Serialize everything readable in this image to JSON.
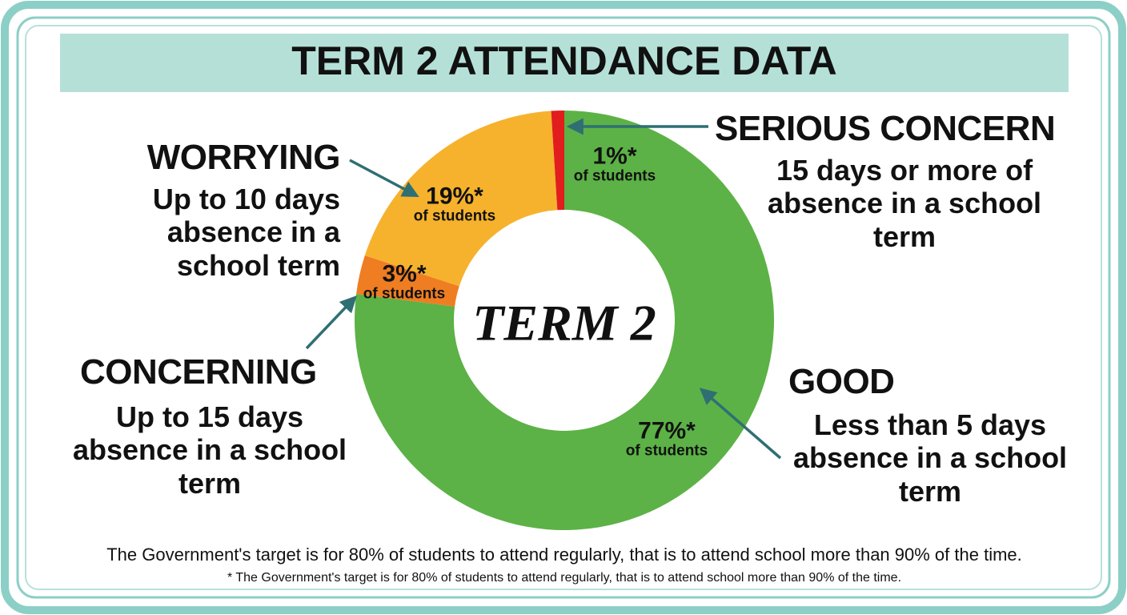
{
  "chart_data": {
    "type": "pie",
    "donut": true,
    "title": "TERM 2 ATTENDANCE DATA",
    "center_label": "TERM 2",
    "categories": [
      "GOOD",
      "CONCERNING",
      "WORRYING",
      "SERIOUS CONCERN"
    ],
    "descriptions": [
      [
        "Less than 5 days",
        "absence in a school",
        "term"
      ],
      [
        "Up to 15 days",
        "absence in a school",
        "term"
      ],
      [
        "Up to 10 days",
        "absence in a",
        "school term"
      ],
      [
        "15 days or more of",
        "absence in a school",
        "term"
      ]
    ],
    "values": [
      77,
      3,
      19,
      1
    ],
    "value_labels": [
      "77%*",
      "3%*",
      "19%*",
      "1%*"
    ],
    "value_sublabel": "of students",
    "colors": [
      "#5cb246",
      "#ef7d22",
      "#f6b22d",
      "#e21d1d"
    ],
    "note": "The Government's target is for 80% of students to attend regularly, that is to attend school more than 90% of the time.",
    "footnote": "* The Government's target is for 80% of students to attend regularly, that is to attend school more than 90% of the time."
  }
}
